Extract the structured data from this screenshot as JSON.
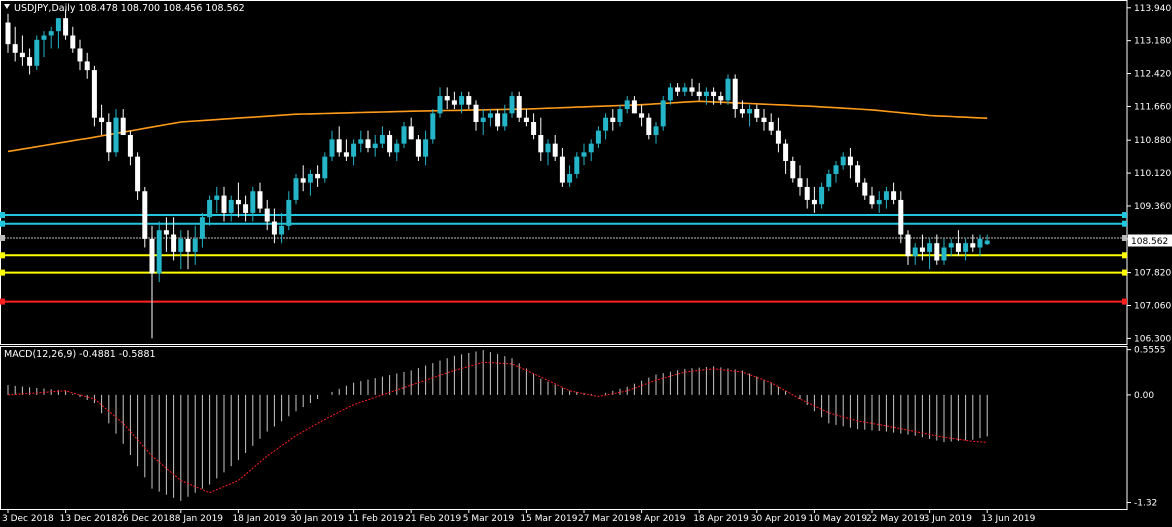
{
  "header": {
    "symbol_line": "USDJPY,Daily  108.478 108.700 108.456 108.562",
    "macd_line": "MACD(12,26,9) -0.4881 -0.5881"
  },
  "colors": {
    "background": "#000000",
    "axis": "#ffffff",
    "bull": "#25b5c8",
    "bear": "#ffffff",
    "ma": "#ff9b1a",
    "aqua_level": "#22c7dd",
    "yellow_level": "#ffff00",
    "red_level": "#ff2020",
    "macd_signal": "#ff2020",
    "macd_hist": "#c8c8c8"
  },
  "chart_data": [
    {
      "type": "candlestick",
      "symbol": "USDJPY",
      "timeframe": "Daily",
      "current_price": 108.562,
      "current_price_label": "108.562",
      "ylim": [
        106.17,
        114.12
      ],
      "y_ticks": [
        113.94,
        113.18,
        112.42,
        111.66,
        110.88,
        110.12,
        109.36,
        108.6,
        107.82,
        107.06,
        106.3
      ],
      "y_tick_labels": [
        "113.940",
        "113.180",
        "112.420",
        "111.660",
        "110.880",
        "110.120",
        "109.360",
        "108.600",
        "107.820",
        "107.060",
        "106.300"
      ],
      "x_tick_labels": [
        "3 Dec 2018",
        "13 Dec 2018",
        "26 Dec 2018",
        "8 Jan 2019",
        "18 Jan 2019",
        "30 Jan 2019",
        "11 Feb 2019",
        "21 Feb 2019",
        "5 Mar 2019",
        "15 Mar 2019",
        "27 Mar 2019",
        "8 Apr 2019",
        "18 Apr 2019",
        "30 Apr 2019",
        "10 May 2019",
        "22 May 2019",
        "3 Jun 2019",
        "13 Jun 2019"
      ],
      "x_tick_index": [
        0,
        8,
        16,
        24,
        32,
        40,
        48,
        56,
        64,
        72,
        80,
        88,
        96,
        104,
        112,
        120,
        128,
        136
      ],
      "ohlc": [
        [
          113.6,
          113.8,
          112.9,
          113.1
        ],
        [
          113.1,
          113.5,
          112.7,
          112.9
        ],
        [
          112.9,
          113.3,
          112.6,
          112.8
        ],
        [
          112.8,
          113.0,
          112.4,
          112.6
        ],
        [
          112.6,
          113.3,
          112.5,
          113.2
        ],
        [
          113.2,
          113.4,
          112.8,
          113.3
        ],
        [
          113.3,
          113.5,
          113.0,
          113.4
        ],
        [
          113.4,
          113.7,
          113.0,
          113.7
        ],
        [
          113.7,
          113.9,
          113.2,
          113.3
        ],
        [
          113.3,
          113.5,
          112.9,
          113.0
        ],
        [
          113.0,
          113.2,
          112.5,
          112.7
        ],
        [
          112.7,
          112.9,
          112.3,
          112.5
        ],
        [
          112.5,
          112.6,
          111.2,
          111.4
        ],
        [
          111.4,
          111.7,
          111.0,
          111.3
        ],
        [
          111.3,
          111.5,
          110.4,
          110.6
        ],
        [
          110.6,
          111.6,
          110.5,
          111.4
        ],
        [
          111.4,
          111.6,
          111.0,
          111.0
        ],
        [
          111.0,
          111.1,
          110.3,
          110.5
        ],
        [
          110.5,
          110.6,
          109.5,
          109.7
        ],
        [
          109.7,
          109.8,
          108.4,
          108.6
        ],
        [
          108.6,
          108.9,
          106.3,
          107.8
        ],
        [
          107.8,
          109.0,
          107.6,
          108.8
        ],
        [
          108.8,
          109.1,
          108.3,
          108.7
        ],
        [
          108.7,
          109.1,
          108.1,
          108.3
        ],
        [
          108.3,
          108.8,
          107.9,
          108.6
        ],
        [
          108.6,
          108.8,
          107.9,
          108.3
        ],
        [
          108.3,
          108.9,
          108.0,
          108.6
        ],
        [
          108.6,
          109.2,
          108.4,
          109.1
        ],
        [
          109.1,
          109.6,
          108.9,
          109.5
        ],
        [
          109.5,
          109.8,
          109.2,
          109.6
        ],
        [
          109.6,
          109.8,
          109.0,
          109.2
        ],
        [
          109.2,
          109.6,
          109.0,
          109.5
        ],
        [
          109.5,
          109.9,
          109.1,
          109.4
        ],
        [
          109.4,
          109.6,
          109.0,
          109.2
        ],
        [
          109.2,
          109.8,
          109.0,
          109.7
        ],
        [
          109.7,
          109.9,
          109.2,
          109.3
        ],
        [
          109.3,
          109.5,
          108.8,
          109.0
        ],
        [
          109.0,
          109.3,
          108.5,
          108.7
        ],
        [
          108.7,
          109.2,
          108.5,
          108.9
        ],
        [
          108.9,
          109.7,
          108.8,
          109.5
        ],
        [
          109.5,
          110.1,
          109.4,
          110.0
        ],
        [
          110.0,
          110.3,
          109.7,
          109.9
        ],
        [
          109.9,
          110.2,
          109.6,
          110.1
        ],
        [
          110.1,
          110.3,
          109.8,
          110.0
        ],
        [
          110.0,
          110.6,
          109.9,
          110.5
        ],
        [
          110.5,
          111.1,
          110.4,
          110.9
        ],
        [
          110.9,
          111.2,
          110.5,
          110.6
        ],
        [
          110.6,
          110.9,
          110.4,
          110.5
        ],
        [
          110.5,
          110.9,
          110.3,
          110.8
        ],
        [
          110.8,
          111.1,
          110.6,
          110.9
        ],
        [
          110.9,
          111.1,
          110.6,
          110.7
        ],
        [
          110.7,
          111.0,
          110.5,
          110.8
        ],
        [
          110.8,
          111.2,
          110.7,
          111.0
        ],
        [
          111.0,
          111.1,
          110.5,
          110.6
        ],
        [
          110.6,
          110.9,
          110.4,
          110.8
        ],
        [
          110.8,
          111.3,
          110.7,
          111.2
        ],
        [
          111.2,
          111.4,
          110.9,
          110.9
        ],
        [
          110.9,
          111.0,
          110.4,
          110.5
        ],
        [
          110.5,
          111.1,
          110.3,
          110.9
        ],
        [
          110.9,
          111.6,
          110.8,
          111.5
        ],
        [
          111.5,
          112.1,
          111.4,
          111.9
        ],
        [
          111.9,
          112.1,
          111.6,
          111.8
        ],
        [
          111.8,
          112.0,
          111.6,
          111.7
        ],
        [
          111.7,
          112.0,
          111.5,
          111.9
        ],
        [
          111.9,
          112.0,
          111.6,
          111.7
        ],
        [
          111.7,
          111.8,
          111.1,
          111.3
        ],
        [
          111.3,
          111.6,
          111.0,
          111.4
        ],
        [
          111.4,
          111.6,
          111.2,
          111.5
        ],
        [
          111.5,
          111.6,
          111.1,
          111.2
        ],
        [
          111.2,
          111.7,
          111.1,
          111.5
        ],
        [
          111.5,
          112.0,
          111.4,
          111.9
        ],
        [
          111.9,
          112.0,
          111.3,
          111.4
        ],
        [
          111.4,
          111.6,
          111.2,
          111.3
        ],
        [
          111.3,
          111.5,
          110.9,
          111.0
        ],
        [
          111.0,
          111.4,
          110.4,
          110.6
        ],
        [
          110.6,
          110.9,
          110.3,
          110.8
        ],
        [
          110.8,
          111.0,
          110.4,
          110.5
        ],
        [
          110.5,
          110.7,
          109.8,
          109.9
        ],
        [
          109.9,
          110.3,
          109.8,
          110.1
        ],
        [
          110.1,
          110.6,
          110.0,
          110.5
        ],
        [
          110.5,
          110.8,
          110.3,
          110.6
        ],
        [
          110.6,
          110.9,
          110.4,
          110.8
        ],
        [
          110.8,
          111.2,
          110.7,
          111.1
        ],
        [
          111.1,
          111.5,
          110.9,
          111.4
        ],
        [
          111.4,
          111.6,
          111.1,
          111.3
        ],
        [
          111.3,
          111.7,
          111.2,
          111.6
        ],
        [
          111.6,
          111.9,
          111.5,
          111.8
        ],
        [
          111.8,
          111.9,
          111.5,
          111.5
        ],
        [
          111.5,
          111.7,
          111.2,
          111.4
        ],
        [
          111.4,
          111.5,
          110.9,
          111.0
        ],
        [
          111.0,
          111.3,
          110.8,
          111.2
        ],
        [
          111.2,
          111.9,
          111.1,
          111.8
        ],
        [
          111.8,
          112.2,
          111.7,
          112.1
        ],
        [
          112.1,
          112.2,
          111.9,
          112.0
        ],
        [
          112.0,
          112.2,
          111.9,
          112.1
        ],
        [
          112.1,
          112.3,
          111.9,
          112.0
        ],
        [
          112.0,
          112.2,
          111.8,
          111.9
        ],
        [
          111.9,
          112.1,
          111.7,
          112.0
        ],
        [
          112.0,
          112.1,
          111.7,
          111.9
        ],
        [
          111.9,
          112.0,
          111.7,
          111.8
        ],
        [
          111.8,
          112.4,
          111.7,
          112.3
        ],
        [
          112.3,
          112.4,
          111.4,
          111.6
        ],
        [
          111.6,
          111.8,
          111.4,
          111.5
        ],
        [
          111.5,
          111.7,
          111.2,
          111.6
        ],
        [
          111.6,
          111.7,
          111.3,
          111.4
        ],
        [
          111.4,
          111.6,
          111.1,
          111.3
        ],
        [
          111.3,
          111.5,
          111.0,
          111.1
        ],
        [
          111.1,
          111.4,
          110.6,
          110.8
        ],
        [
          110.8,
          110.9,
          110.1,
          110.4
        ],
        [
          110.4,
          110.5,
          109.9,
          110.0
        ],
        [
          110.0,
          110.3,
          109.6,
          109.8
        ],
        [
          109.8,
          110.0,
          109.3,
          109.5
        ],
        [
          109.5,
          109.8,
          109.2,
          109.4
        ],
        [
          109.4,
          109.9,
          109.3,
          109.8
        ],
        [
          109.8,
          110.2,
          109.7,
          110.1
        ],
        [
          110.1,
          110.4,
          109.9,
          110.3
        ],
        [
          110.3,
          110.6,
          110.2,
          110.5
        ],
        [
          110.5,
          110.7,
          110.0,
          110.3
        ],
        [
          110.3,
          110.4,
          109.8,
          109.9
        ],
        [
          109.9,
          110.0,
          109.5,
          109.6
        ],
        [
          109.6,
          109.8,
          109.3,
          109.4
        ],
        [
          109.4,
          109.7,
          109.2,
          109.5
        ],
        [
          109.5,
          109.8,
          109.3,
          109.7
        ],
        [
          109.7,
          109.9,
          109.4,
          109.5
        ],
        [
          109.5,
          109.7,
          108.5,
          108.7
        ],
        [
          108.7,
          108.8,
          108.0,
          108.2
        ],
        [
          108.2,
          108.5,
          108.0,
          108.4
        ],
        [
          108.4,
          108.7,
          108.1,
          108.3
        ],
        [
          108.3,
          108.6,
          107.9,
          108.5
        ],
        [
          108.5,
          108.7,
          108.0,
          108.1
        ],
        [
          108.1,
          108.6,
          108.0,
          108.4
        ],
        [
          108.4,
          108.6,
          108.2,
          108.5
        ],
        [
          108.5,
          108.8,
          108.2,
          108.3
        ],
        [
          108.3,
          108.6,
          108.1,
          108.5
        ],
        [
          108.5,
          108.7,
          108.3,
          108.4
        ],
        [
          108.4,
          108.7,
          108.2,
          108.6
        ],
        [
          108.478,
          108.7,
          108.456,
          108.562
        ]
      ],
      "moving_average": [
        [
          0,
          110.62
        ],
        [
          12,
          110.95
        ],
        [
          24,
          111.3
        ],
        [
          40,
          111.48
        ],
        [
          56,
          111.55
        ],
        [
          72,
          111.6
        ],
        [
          88,
          111.7
        ],
        [
          96,
          111.78
        ],
        [
          104,
          111.72
        ],
        [
          112,
          111.66
        ],
        [
          120,
          111.58
        ],
        [
          128,
          111.45
        ],
        [
          137,
          111.38
        ]
      ],
      "levels": [
        {
          "price": 109.15,
          "role": "aqua"
        },
        {
          "price": 108.95,
          "role": "aqua"
        },
        {
          "price": 108.62,
          "role": "gray"
        },
        {
          "price": 108.22,
          "role": "yellow"
        },
        {
          "price": 107.82,
          "role": "yellow"
        },
        {
          "price": 107.15,
          "role": "red"
        }
      ]
    },
    {
      "type": "bar",
      "indicator": "MACD(12,26,9)",
      "ylim": [
        -1.4,
        0.6
      ],
      "y_ticks": [
        0.5555,
        0.0,
        -1.32
      ],
      "y_tick_labels": [
        "0.5555",
        "0.00",
        "-1.32"
      ],
      "histogram_keypoints": [
        [
          0,
          0.12
        ],
        [
          8,
          0.05
        ],
        [
          12,
          -0.1
        ],
        [
          16,
          -0.6
        ],
        [
          20,
          -1.15
        ],
        [
          24,
          -1.3
        ],
        [
          28,
          -1.1
        ],
        [
          32,
          -0.8
        ],
        [
          36,
          -0.45
        ],
        [
          40,
          -0.2
        ],
        [
          44,
          0.0
        ],
        [
          48,
          0.15
        ],
        [
          56,
          0.3
        ],
        [
          62,
          0.48
        ],
        [
          66,
          0.55
        ],
        [
          70,
          0.45
        ],
        [
          74,
          0.2
        ],
        [
          78,
          0.05
        ],
        [
          82,
          0.0
        ],
        [
          86,
          0.1
        ],
        [
          90,
          0.25
        ],
        [
          94,
          0.32
        ],
        [
          98,
          0.35
        ],
        [
          102,
          0.3
        ],
        [
          106,
          0.15
        ],
        [
          110,
          -0.05
        ],
        [
          114,
          -0.35
        ],
        [
          118,
          -0.42
        ],
        [
          122,
          -0.45
        ],
        [
          126,
          -0.5
        ],
        [
          130,
          -0.58
        ],
        [
          134,
          -0.55
        ],
        [
          137,
          -0.49
        ]
      ],
      "signal_keypoints": [
        [
          0,
          0.0
        ],
        [
          8,
          0.05
        ],
        [
          12,
          -0.05
        ],
        [
          16,
          -0.35
        ],
        [
          20,
          -0.75
        ],
        [
          24,
          -1.05
        ],
        [
          28,
          -1.2
        ],
        [
          32,
          -1.05
        ],
        [
          36,
          -0.75
        ],
        [
          40,
          -0.5
        ],
        [
          44,
          -0.3
        ],
        [
          48,
          -0.12
        ],
        [
          56,
          0.12
        ],
        [
          62,
          0.3
        ],
        [
          66,
          0.4
        ],
        [
          70,
          0.38
        ],
        [
          74,
          0.22
        ],
        [
          78,
          0.05
        ],
        [
          82,
          -0.02
        ],
        [
          86,
          0.05
        ],
        [
          90,
          0.18
        ],
        [
          94,
          0.28
        ],
        [
          98,
          0.32
        ],
        [
          102,
          0.28
        ],
        [
          106,
          0.15
        ],
        [
          110,
          -0.05
        ],
        [
          114,
          -0.22
        ],
        [
          118,
          -0.32
        ],
        [
          122,
          -0.38
        ],
        [
          126,
          -0.45
        ],
        [
          130,
          -0.52
        ],
        [
          134,
          -0.57
        ],
        [
          137,
          -0.59
        ]
      ]
    }
  ]
}
